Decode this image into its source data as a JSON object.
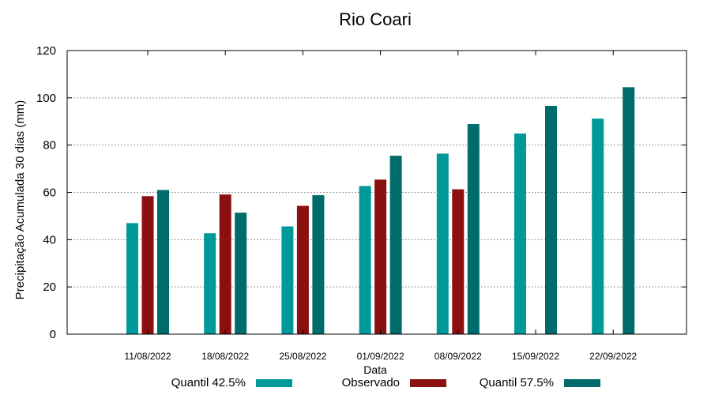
{
  "chart_data": {
    "type": "bar",
    "title": "Rio Coari",
    "xlabel": "Data",
    "ylabel": "Precipitação Acumulada 30 dias (mm)",
    "ylim": [
      0,
      120
    ],
    "yticks": [
      0,
      20,
      40,
      60,
      80,
      100,
      120
    ],
    "grid": true,
    "legend_position": "bottom",
    "categories": [
      "11/08/2022",
      "18/08/2022",
      "25/08/2022",
      "01/09/2022",
      "08/09/2022",
      "15/09/2022",
      "22/09/2022"
    ],
    "series": [
      {
        "name": "Quantil 42.5%",
        "color": "#009999",
        "values": [
          47,
          42.7,
          45.6,
          62.7,
          76.4,
          84.9,
          91.2
        ]
      },
      {
        "name": "Observado",
        "color": "#8b1010",
        "values": [
          58.4,
          59.1,
          54.3,
          65.4,
          61.3,
          null,
          null
        ]
      },
      {
        "name": "Quantil 57.5%",
        "color": "#006b6b",
        "values": [
          61,
          51.4,
          58.8,
          75.5,
          88.9,
          96.6,
          104.5
        ]
      }
    ]
  }
}
